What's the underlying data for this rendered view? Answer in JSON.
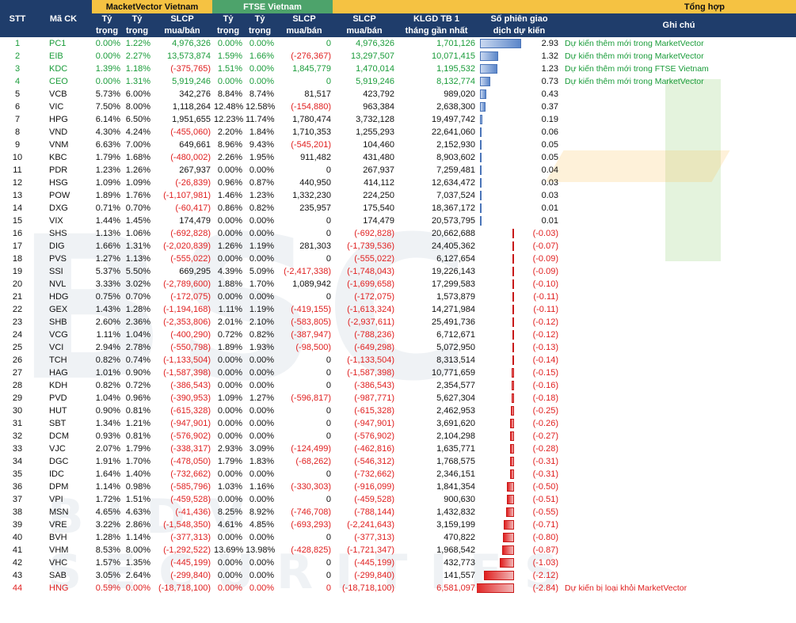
{
  "header": {
    "stt": "STT",
    "ma_ck": "Mã CK",
    "mv_title": "MacketVector Vietnam",
    "ftse_title": "FTSE Vietnam",
    "tong_title": "Tổng hợp",
    "ty_trong_1": "Tỷ",
    "ty_trong_2": "trọng",
    "slcp_1": "SLCP",
    "slcp_2": "mua/bán",
    "klgd_1": "KLGD TB 1",
    "klgd_2": "tháng gần nhất",
    "sophien_1": "Số phiên giao",
    "sophien_2": "dịch dự kiến",
    "ghichu": "Ghi chú"
  },
  "rows": [
    {
      "stt": "1",
      "code": "PC1",
      "mv1": "0.00%",
      "mv2": "1.22%",
      "mvs": "4,976,326",
      "f1": "0.00%",
      "f2": "0.00%",
      "fs": "0",
      "ts": "4,976,326",
      "kl": "1,701,126",
      "sp": "2.93",
      "spv": 2.93,
      "note": "Dự kiến thêm mới trong MarketVector",
      "cls": "green"
    },
    {
      "stt": "2",
      "code": "EIB",
      "mv1": "0.00%",
      "mv2": "2.27%",
      "mvs": "13,573,874",
      "f1": "1.59%",
      "f2": "1.66%",
      "fs": "(-276,367)",
      "ts": "13,297,507",
      "kl": "10,071,415",
      "sp": "1.32",
      "spv": 1.32,
      "note": "Dự kiến thêm mới trong MarketVector",
      "cls": "green"
    },
    {
      "stt": "3",
      "code": "KDC",
      "mv1": "1.39%",
      "mv2": "1.18%",
      "mvs": "(-375,765)",
      "f1": "1.51%",
      "f2": "0.00%",
      "fs": "1,845,779",
      "ts": "1,470,014",
      "kl": "1,195,532",
      "sp": "1.23",
      "spv": 1.23,
      "note": "Dự kiến thêm mới trong FTSE Vietnam",
      "cls": "green"
    },
    {
      "stt": "4",
      "code": "CEO",
      "mv1": "0.00%",
      "mv2": "1.31%",
      "mvs": "5,919,246",
      "f1": "0.00%",
      "f2": "0.00%",
      "fs": "0",
      "ts": "5,919,246",
      "kl": "8,132,774",
      "sp": "0.73",
      "spv": 0.73,
      "note": "Dự kiến thêm mới trong MarketVector",
      "cls": "green"
    },
    {
      "stt": "5",
      "code": "VCB",
      "mv1": "5.73%",
      "mv2": "6.00%",
      "mvs": "342,276",
      "f1": "8.84%",
      "f2": "8.74%",
      "fs": "81,517",
      "ts": "423,792",
      "kl": "989,020",
      "sp": "0.43",
      "spv": 0.43,
      "note": "",
      "cls": ""
    },
    {
      "stt": "6",
      "code": "VIC",
      "mv1": "7.50%",
      "mv2": "8.00%",
      "mvs": "1,118,264",
      "f1": "12.48%",
      "f2": "12.58%",
      "fs": "(-154,880)",
      "ts": "963,384",
      "kl": "2,638,300",
      "sp": "0.37",
      "spv": 0.37,
      "note": "",
      "cls": ""
    },
    {
      "stt": "7",
      "code": "HPG",
      "mv1": "6.14%",
      "mv2": "6.50%",
      "mvs": "1,951,655",
      "f1": "12.23%",
      "f2": "11.74%",
      "fs": "1,780,474",
      "ts": "3,732,128",
      "kl": "19,497,742",
      "sp": "0.19",
      "spv": 0.19,
      "note": "",
      "cls": ""
    },
    {
      "stt": "8",
      "code": "VND",
      "mv1": "4.30%",
      "mv2": "4.24%",
      "mvs": "(-455,060)",
      "f1": "2.20%",
      "f2": "1.84%",
      "fs": "1,710,353",
      "ts": "1,255,293",
      "kl": "22,641,060",
      "sp": "0.06",
      "spv": 0.06,
      "note": "",
      "cls": ""
    },
    {
      "stt": "9",
      "code": "VNM",
      "mv1": "6.63%",
      "mv2": "7.00%",
      "mvs": "649,661",
      "f1": "8.96%",
      "f2": "9.43%",
      "fs": "(-545,201)",
      "ts": "104,460",
      "kl": "2,152,930",
      "sp": "0.05",
      "spv": 0.05,
      "note": "",
      "cls": ""
    },
    {
      "stt": "10",
      "code": "KBC",
      "mv1": "1.79%",
      "mv2": "1.68%",
      "mvs": "(-480,002)",
      "f1": "2.26%",
      "f2": "1.95%",
      "fs": "911,482",
      "ts": "431,480",
      "kl": "8,903,602",
      "sp": "0.05",
      "spv": 0.05,
      "note": "",
      "cls": ""
    },
    {
      "stt": "11",
      "code": "PDR",
      "mv1": "1.23%",
      "mv2": "1.26%",
      "mvs": "267,937",
      "f1": "0.00%",
      "f2": "0.00%",
      "fs": "0",
      "ts": "267,937",
      "kl": "7,259,481",
      "sp": "0.04",
      "spv": 0.04,
      "note": "",
      "cls": ""
    },
    {
      "stt": "12",
      "code": "HSG",
      "mv1": "1.09%",
      "mv2": "1.09%",
      "mvs": "(-26,839)",
      "f1": "0.96%",
      "f2": "0.87%",
      "fs": "440,950",
      "ts": "414,112",
      "kl": "12,634,472",
      "sp": "0.03",
      "spv": 0.03,
      "note": "",
      "cls": ""
    },
    {
      "stt": "13",
      "code": "POW",
      "mv1": "1.89%",
      "mv2": "1.76%",
      "mvs": "(-1,107,981)",
      "f1": "1.46%",
      "f2": "1.23%",
      "fs": "1,332,230",
      "ts": "224,250",
      "kl": "7,037,524",
      "sp": "0.03",
      "spv": 0.03,
      "note": "",
      "cls": ""
    },
    {
      "stt": "14",
      "code": "DXG",
      "mv1": "0.71%",
      "mv2": "0.70%",
      "mvs": "(-60,417)",
      "f1": "0.86%",
      "f2": "0.82%",
      "fs": "235,957",
      "ts": "175,540",
      "kl": "18,367,172",
      "sp": "0.01",
      "spv": 0.01,
      "note": "",
      "cls": ""
    },
    {
      "stt": "15",
      "code": "VIX",
      "mv1": "1.44%",
      "mv2": "1.45%",
      "mvs": "174,479",
      "f1": "0.00%",
      "f2": "0.00%",
      "fs": "0",
      "ts": "174,479",
      "kl": "20,573,795",
      "sp": "0.01",
      "spv": 0.01,
      "note": "",
      "cls": ""
    },
    {
      "stt": "16",
      "code": "SHS",
      "mv1": "1.13%",
      "mv2": "1.06%",
      "mvs": "(-692,828)",
      "f1": "0.00%",
      "f2": "0.00%",
      "fs": "0",
      "ts": "(-692,828)",
      "kl": "20,662,688",
      "sp": "(-0.03)",
      "spv": -0.03,
      "note": "",
      "cls": ""
    },
    {
      "stt": "17",
      "code": "DIG",
      "mv1": "1.66%",
      "mv2": "1.31%",
      "mvs": "(-2,020,839)",
      "f1": "1.26%",
      "f2": "1.19%",
      "fs": "281,303",
      "ts": "(-1,739,536)",
      "kl": "24,405,362",
      "sp": "(-0.07)",
      "spv": -0.07,
      "note": "",
      "cls": ""
    },
    {
      "stt": "18",
      "code": "PVS",
      "mv1": "1.27%",
      "mv2": "1.13%",
      "mvs": "(-555,022)",
      "f1": "0.00%",
      "f2": "0.00%",
      "fs": "0",
      "ts": "(-555,022)",
      "kl": "6,127,654",
      "sp": "(-0.09)",
      "spv": -0.09,
      "note": "",
      "cls": ""
    },
    {
      "stt": "19",
      "code": "SSI",
      "mv1": "5.37%",
      "mv2": "5.50%",
      "mvs": "669,295",
      "f1": "4.39%",
      "f2": "5.09%",
      "fs": "(-2,417,338)",
      "ts": "(-1,748,043)",
      "kl": "19,226,143",
      "sp": "(-0.09)",
      "spv": -0.09,
      "note": "",
      "cls": ""
    },
    {
      "stt": "20",
      "code": "NVL",
      "mv1": "3.33%",
      "mv2": "3.02%",
      "mvs": "(-2,789,600)",
      "f1": "1.88%",
      "f2": "1.70%",
      "fs": "1,089,942",
      "ts": "(-1,699,658)",
      "kl": "17,299,583",
      "sp": "(-0.10)",
      "spv": -0.1,
      "note": "",
      "cls": ""
    },
    {
      "stt": "21",
      "code": "HDG",
      "mv1": "0.75%",
      "mv2": "0.70%",
      "mvs": "(-172,075)",
      "f1": "0.00%",
      "f2": "0.00%",
      "fs": "0",
      "ts": "(-172,075)",
      "kl": "1,573,879",
      "sp": "(-0.11)",
      "spv": -0.11,
      "note": "",
      "cls": ""
    },
    {
      "stt": "22",
      "code": "GEX",
      "mv1": "1.43%",
      "mv2": "1.28%",
      "mvs": "(-1,194,168)",
      "f1": "1.11%",
      "f2": "1.19%",
      "fs": "(-419,155)",
      "ts": "(-1,613,324)",
      "kl": "14,271,984",
      "sp": "(-0.11)",
      "spv": -0.11,
      "note": "",
      "cls": ""
    },
    {
      "stt": "23",
      "code": "SHB",
      "mv1": "2.60%",
      "mv2": "2.36%",
      "mvs": "(-2,353,806)",
      "f1": "2.01%",
      "f2": "2.10%",
      "fs": "(-583,805)",
      "ts": "(-2,937,611)",
      "kl": "25,491,736",
      "sp": "(-0.12)",
      "spv": -0.12,
      "note": "",
      "cls": ""
    },
    {
      "stt": "24",
      "code": "VCG",
      "mv1": "1.11%",
      "mv2": "1.04%",
      "mvs": "(-400,290)",
      "f1": "0.72%",
      "f2": "0.82%",
      "fs": "(-387,947)",
      "ts": "(-788,236)",
      "kl": "6,712,671",
      "sp": "(-0.12)",
      "spv": -0.12,
      "note": "",
      "cls": ""
    },
    {
      "stt": "25",
      "code": "VCI",
      "mv1": "2.94%",
      "mv2": "2.78%",
      "mvs": "(-550,798)",
      "f1": "1.89%",
      "f2": "1.93%",
      "fs": "(-98,500)",
      "ts": "(-649,298)",
      "kl": "5,072,950",
      "sp": "(-0.13)",
      "spv": -0.13,
      "note": "",
      "cls": ""
    },
    {
      "stt": "26",
      "code": "TCH",
      "mv1": "0.82%",
      "mv2": "0.74%",
      "mvs": "(-1,133,504)",
      "f1": "0.00%",
      "f2": "0.00%",
      "fs": "0",
      "ts": "(-1,133,504)",
      "kl": "8,313,514",
      "sp": "(-0.14)",
      "spv": -0.14,
      "note": "",
      "cls": ""
    },
    {
      "stt": "27",
      "code": "HAG",
      "mv1": "1.01%",
      "mv2": "0.90%",
      "mvs": "(-1,587,398)",
      "f1": "0.00%",
      "f2": "0.00%",
      "fs": "0",
      "ts": "(-1,587,398)",
      "kl": "10,771,659",
      "sp": "(-0.15)",
      "spv": -0.15,
      "note": "",
      "cls": ""
    },
    {
      "stt": "28",
      "code": "KDH",
      "mv1": "0.82%",
      "mv2": "0.72%",
      "mvs": "(-386,543)",
      "f1": "0.00%",
      "f2": "0.00%",
      "fs": "0",
      "ts": "(-386,543)",
      "kl": "2,354,577",
      "sp": "(-0.16)",
      "spv": -0.16,
      "note": "",
      "cls": ""
    },
    {
      "stt": "29",
      "code": "PVD",
      "mv1": "1.04%",
      "mv2": "0.96%",
      "mvs": "(-390,953)",
      "f1": "1.09%",
      "f2": "1.27%",
      "fs": "(-596,817)",
      "ts": "(-987,771)",
      "kl": "5,627,304",
      "sp": "(-0.18)",
      "spv": -0.18,
      "note": "",
      "cls": ""
    },
    {
      "stt": "30",
      "code": "HUT",
      "mv1": "0.90%",
      "mv2": "0.81%",
      "mvs": "(-615,328)",
      "f1": "0.00%",
      "f2": "0.00%",
      "fs": "0",
      "ts": "(-615,328)",
      "kl": "2,462,953",
      "sp": "(-0.25)",
      "spv": -0.25,
      "note": "",
      "cls": ""
    },
    {
      "stt": "31",
      "code": "SBT",
      "mv1": "1.34%",
      "mv2": "1.21%",
      "mvs": "(-947,901)",
      "f1": "0.00%",
      "f2": "0.00%",
      "fs": "0",
      "ts": "(-947,901)",
      "kl": "3,691,620",
      "sp": "(-0.26)",
      "spv": -0.26,
      "note": "",
      "cls": ""
    },
    {
      "stt": "32",
      "code": "DCM",
      "mv1": "0.93%",
      "mv2": "0.81%",
      "mvs": "(-576,902)",
      "f1": "0.00%",
      "f2": "0.00%",
      "fs": "0",
      "ts": "(-576,902)",
      "kl": "2,104,298",
      "sp": "(-0.27)",
      "spv": -0.27,
      "note": "",
      "cls": ""
    },
    {
      "stt": "33",
      "code": "VJC",
      "mv1": "2.07%",
      "mv2": "1.79%",
      "mvs": "(-338,317)",
      "f1": "2.93%",
      "f2": "3.09%",
      "fs": "(-124,499)",
      "ts": "(-462,816)",
      "kl": "1,635,771",
      "sp": "(-0.28)",
      "spv": -0.28,
      "note": "",
      "cls": ""
    },
    {
      "stt": "34",
      "code": "DGC",
      "mv1": "1.91%",
      "mv2": "1.70%",
      "mvs": "(-478,050)",
      "f1": "1.79%",
      "f2": "1.83%",
      "fs": "(-68,262)",
      "ts": "(-546,312)",
      "kl": "1,768,575",
      "sp": "(-0.31)",
      "spv": -0.31,
      "note": "",
      "cls": ""
    },
    {
      "stt": "35",
      "code": "IDC",
      "mv1": "1.64%",
      "mv2": "1.40%",
      "mvs": "(-732,662)",
      "f1": "0.00%",
      "f2": "0.00%",
      "fs": "0",
      "ts": "(-732,662)",
      "kl": "2,346,151",
      "sp": "(-0.31)",
      "spv": -0.31,
      "note": "",
      "cls": ""
    },
    {
      "stt": "36",
      "code": "DPM",
      "mv1": "1.14%",
      "mv2": "0.98%",
      "mvs": "(-585,796)",
      "f1": "1.03%",
      "f2": "1.16%",
      "fs": "(-330,303)",
      "ts": "(-916,099)",
      "kl": "1,841,354",
      "sp": "(-0.50)",
      "spv": -0.5,
      "note": "",
      "cls": ""
    },
    {
      "stt": "37",
      "code": "VPI",
      "mv1": "1.72%",
      "mv2": "1.51%",
      "mvs": "(-459,528)",
      "f1": "0.00%",
      "f2": "0.00%",
      "fs": "0",
      "ts": "(-459,528)",
      "kl": "900,630",
      "sp": "(-0.51)",
      "spv": -0.51,
      "note": "",
      "cls": ""
    },
    {
      "stt": "38",
      "code": "MSN",
      "mv1": "4.65%",
      "mv2": "4.63%",
      "mvs": "(-41,436)",
      "f1": "8.25%",
      "f2": "8.92%",
      "fs": "(-746,708)",
      "ts": "(-788,144)",
      "kl": "1,432,832",
      "sp": "(-0.55)",
      "spv": -0.55,
      "note": "",
      "cls": ""
    },
    {
      "stt": "39",
      "code": "VRE",
      "mv1": "3.22%",
      "mv2": "2.86%",
      "mvs": "(-1,548,350)",
      "f1": "4.61%",
      "f2": "4.85%",
      "fs": "(-693,293)",
      "ts": "(-2,241,643)",
      "kl": "3,159,199",
      "sp": "(-0.71)",
      "spv": -0.71,
      "note": "",
      "cls": ""
    },
    {
      "stt": "40",
      "code": "BVH",
      "mv1": "1.28%",
      "mv2": "1.14%",
      "mvs": "(-377,313)",
      "f1": "0.00%",
      "f2": "0.00%",
      "fs": "0",
      "ts": "(-377,313)",
      "kl": "470,822",
      "sp": "(-0.80)",
      "spv": -0.8,
      "note": "",
      "cls": ""
    },
    {
      "stt": "41",
      "code": "VHM",
      "mv1": "8.53%",
      "mv2": "8.00%",
      "mvs": "(-1,292,522)",
      "f1": "13.69%",
      "f2": "13.98%",
      "fs": "(-428,825)",
      "ts": "(-1,721,347)",
      "kl": "1,968,542",
      "sp": "(-0.87)",
      "spv": -0.87,
      "note": "",
      "cls": ""
    },
    {
      "stt": "42",
      "code": "VHC",
      "mv1": "1.57%",
      "mv2": "1.35%",
      "mvs": "(-445,199)",
      "f1": "0.00%",
      "f2": "0.00%",
      "fs": "0",
      "ts": "(-445,199)",
      "kl": "432,773",
      "sp": "(-1.03)",
      "spv": -1.03,
      "note": "",
      "cls": ""
    },
    {
      "stt": "43",
      "code": "SAB",
      "mv1": "3.05%",
      "mv2": "2.64%",
      "mvs": "(-299,840)",
      "f1": "0.00%",
      "f2": "0.00%",
      "fs": "0",
      "ts": "(-299,840)",
      "kl": "141,557",
      "sp": "(-2.12)",
      "spv": -2.12,
      "note": "",
      "cls": ""
    },
    {
      "stt": "44",
      "code": "HNG",
      "mv1": "0.59%",
      "mv2": "0.00%",
      "mvs": "(-18,718,100)",
      "f1": "0.00%",
      "f2": "0.00%",
      "fs": "0",
      "ts": "(-18,718,100)",
      "kl": "6,581,097",
      "sp": "(-2.84)",
      "spv": -2.84,
      "note": "Dự kiến bị loại khỏi MarketVector",
      "cls": "red"
    }
  ],
  "watermark": {
    "main": "BSC",
    "sub": "BIDV SECURITIES"
  }
}
